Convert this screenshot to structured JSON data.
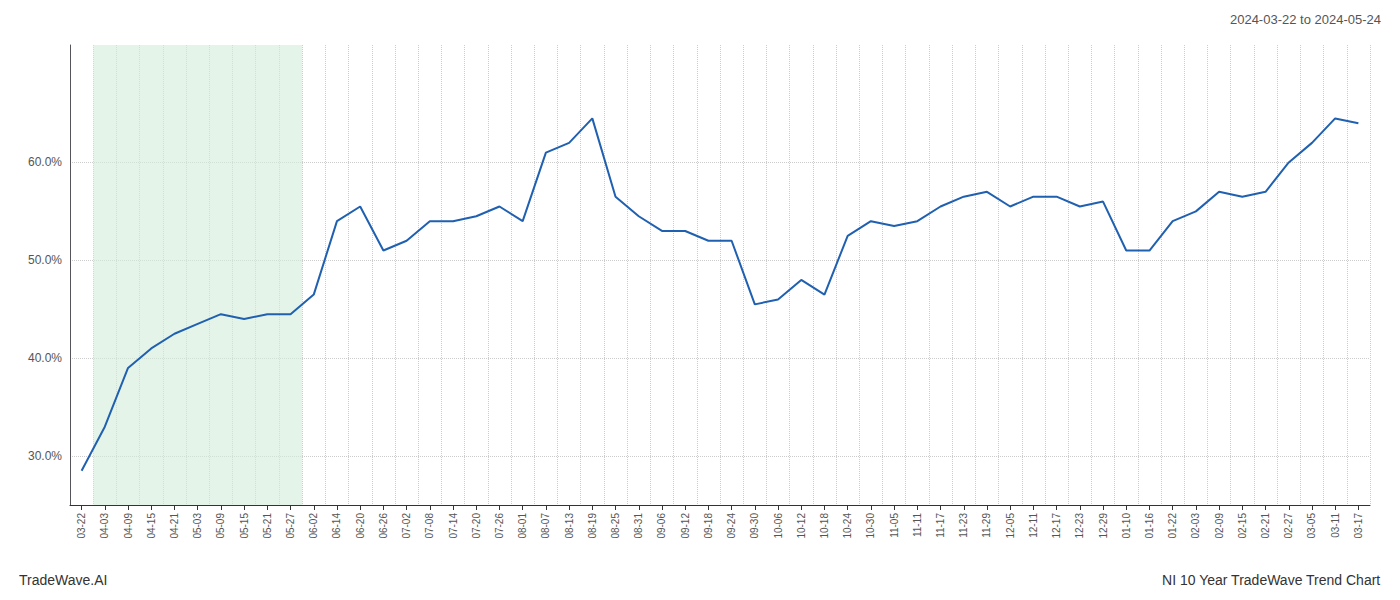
{
  "chart_data": {
    "type": "line",
    "title": "NI 10 Year TradeWave Trend Chart",
    "subtitle": "2024-03-22 to 2024-05-24",
    "annotations": [
      "TradeWave.AI"
    ],
    "categories": [
      "03-22",
      "04-03",
      "04-09",
      "04-15",
      "04-21",
      "05-03",
      "05-09",
      "05-15",
      "05-21",
      "05-27",
      "06-02",
      "06-14",
      "06-20",
      "06-26",
      "07-02",
      "07-08",
      "07-14",
      "07-20",
      "07-26",
      "08-01",
      "08-07",
      "08-13",
      "08-19",
      "08-25",
      "08-31",
      "09-06",
      "09-12",
      "09-18",
      "09-24",
      "09-30",
      "10-06",
      "10-12",
      "10-18",
      "10-24",
      "10-30",
      "11-05",
      "11-11",
      "11-17",
      "11-23",
      "11-29",
      "12-05",
      "12-11",
      "12-17",
      "12-23",
      "12-29",
      "01-10",
      "01-16",
      "01-22",
      "02-03",
      "02-09",
      "02-15",
      "02-21",
      "02-27",
      "03-05",
      "03-11",
      "03-17"
    ],
    "values": [
      0.285,
      0.33,
      0.39,
      0.41,
      0.425,
      0.435,
      0.445,
      0.44,
      0.445,
      0.445,
      0.465,
      0.54,
      0.555,
      0.51,
      0.52,
      0.54,
      0.54,
      0.545,
      0.555,
      0.54,
      0.61,
      0.62,
      0.645,
      0.565,
      0.545,
      0.53,
      0.53,
      0.52,
      0.52,
      0.455,
      0.46,
      0.48,
      0.465,
      0.525,
      0.54,
      0.535,
      0.54,
      0.555,
      0.565,
      0.57,
      0.555,
      0.565,
      0.565,
      0.555,
      0.56,
      0.51,
      0.51,
      0.54,
      0.55,
      0.57,
      0.565,
      0.57,
      0.6,
      0.62,
      0.645,
      0.64
    ],
    "color": "#2060b0",
    "ylim": [
      0.25,
      0.72
    ],
    "yticks": [
      {
        "value": 0.3,
        "label": "30.0%"
      },
      {
        "value": 0.4,
        "label": "40.0%"
      },
      {
        "value": 0.5,
        "label": "50.0%"
      },
      {
        "value": 0.6,
        "label": "60.0%"
      }
    ],
    "grid": true,
    "shaded_range": [
      "04-03",
      "05-27"
    ],
    "shaded_color": "#d4edda"
  }
}
